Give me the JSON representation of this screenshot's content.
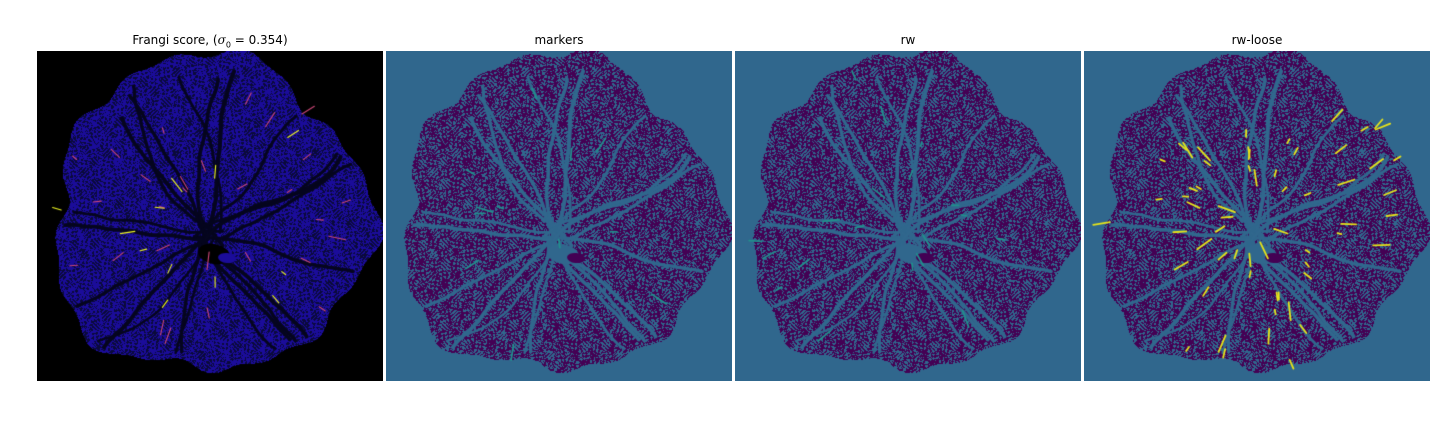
{
  "figure": {
    "panels": [
      {
        "id": "frangi",
        "title_prefix": "Frangi score, (",
        "title_math_symbol": "σ",
        "title_math_subscript": "0",
        "title_math_rest": " = 0.354)",
        "colormap": "plasma",
        "background": "#000000"
      },
      {
        "id": "markers",
        "title": "markers",
        "colormap": "viridis",
        "background": "#30678d"
      },
      {
        "id": "rw",
        "title": "rw",
        "colormap": "viridis",
        "background": "#30678d"
      },
      {
        "id": "rw-loose",
        "title": "rw-loose",
        "colormap": "viridis",
        "background": "#30678d"
      }
    ]
  },
  "colors": {
    "viridis_dark": "#440154",
    "viridis_mid": "#30678d",
    "viridis_teal": "#21908d",
    "viridis_yellow": "#e7e419",
    "plasma_blue": "#1b0c9a",
    "plasma_pink": "#cc4778",
    "plasma_yellow": "#f0f921"
  }
}
